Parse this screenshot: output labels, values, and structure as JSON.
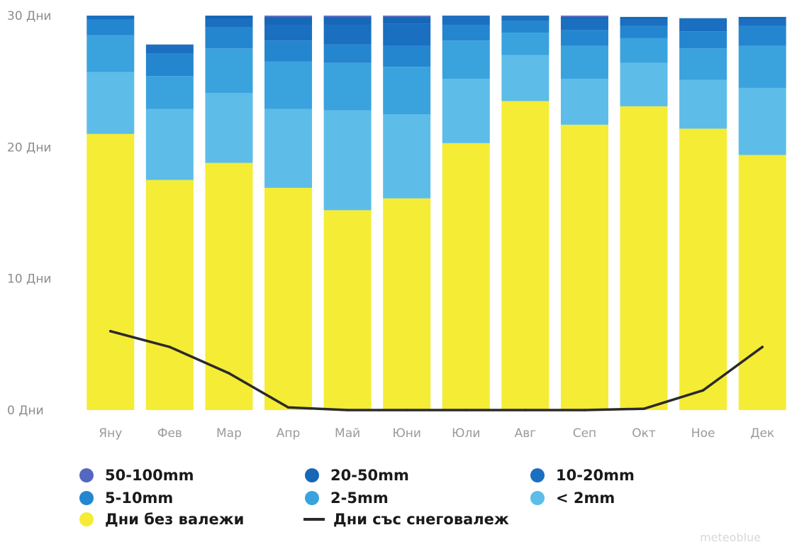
{
  "chart_data": {
    "type": "bar",
    "stacked": true,
    "categories": [
      "Яну",
      "Фев",
      "Мар",
      "Апр",
      "Май",
      "Юни",
      "Юли",
      "Авг",
      "Сеп",
      "Окт",
      "Ное",
      "Дек"
    ],
    "y_ticks": [
      "0 Дни",
      "10 Дни",
      "20 Дни",
      "30 Дни"
    ],
    "ylim": [
      0,
      30
    ],
    "grid": false,
    "legend_position": "bottom",
    "series": [
      {
        "name": "Дни без валежи",
        "color": "#f5ec35",
        "values": [
          21.0,
          17.5,
          18.8,
          16.9,
          15.2,
          16.1,
          20.3,
          23.5,
          21.7,
          23.1,
          21.4,
          19.4
        ]
      },
      {
        "name": "< 2mm",
        "color": "#5dbde8",
        "values": [
          4.7,
          5.4,
          5.3,
          6.0,
          7.6,
          6.4,
          4.9,
          3.5,
          3.5,
          3.3,
          3.7,
          5.1
        ]
      },
      {
        "name": "2-5mm",
        "color": "#3aa3de",
        "values": [
          2.8,
          2.5,
          3.4,
          3.6,
          3.6,
          3.6,
          2.9,
          1.7,
          2.5,
          1.9,
          2.4,
          3.2
        ]
      },
      {
        "name": "5-10mm",
        "color": "#2486cf",
        "values": [
          1.2,
          1.7,
          1.6,
          1.6,
          1.4,
          1.6,
          1.2,
          0.9,
          1.2,
          0.9,
          1.3,
          1.5
        ]
      },
      {
        "name": "10-20mm",
        "color": "#1a6fc0",
        "values": [
          0.3,
          0.6,
          0.6,
          1.2,
          1.5,
          1.7,
          0.6,
          0.3,
          0.8,
          0.5,
          0.9,
          0.5
        ]
      },
      {
        "name": "20-50mm",
        "color": "#1667b7",
        "values": [
          0.0,
          0.1,
          0.3,
          0.6,
          0.6,
          0.5,
          0.1,
          0.1,
          0.2,
          0.2,
          0.1,
          0.2
        ]
      },
      {
        "name": "50-100mm",
        "color": "#5468c0",
        "values": [
          0.0,
          0.0,
          0.0,
          0.1,
          0.1,
          0.1,
          0.0,
          0.0,
          0.1,
          0.0,
          0.0,
          0.0
        ]
      }
    ],
    "line_series": {
      "name": "Дни със снеговалеж",
      "color": "#2a2a2a",
      "values": [
        6.0,
        4.8,
        2.8,
        0.2,
        0.0,
        0.0,
        0.0,
        0.0,
        0.0,
        0.1,
        1.5,
        4.8
      ]
    }
  },
  "legend": [
    {
      "label": "50-100mm",
      "color": "#5468c0",
      "kind": "dot"
    },
    {
      "label": "20-50mm",
      "color": "#1667b7",
      "kind": "dot"
    },
    {
      "label": "10-20mm",
      "color": "#1a6fc0",
      "kind": "dot"
    },
    {
      "label": "5-10mm",
      "color": "#2486cf",
      "kind": "dot"
    },
    {
      "label": "2-5mm",
      "color": "#3aa3de",
      "kind": "dot"
    },
    {
      "label": "< 2mm",
      "color": "#5dbde8",
      "kind": "dot"
    },
    {
      "label": "Дни без валежи",
      "color": "#f5ec35",
      "kind": "dot"
    },
    {
      "label": "Дни със снеговалеж",
      "color": "#2a2a2a",
      "kind": "line"
    }
  ],
  "watermark": "meteoblue"
}
